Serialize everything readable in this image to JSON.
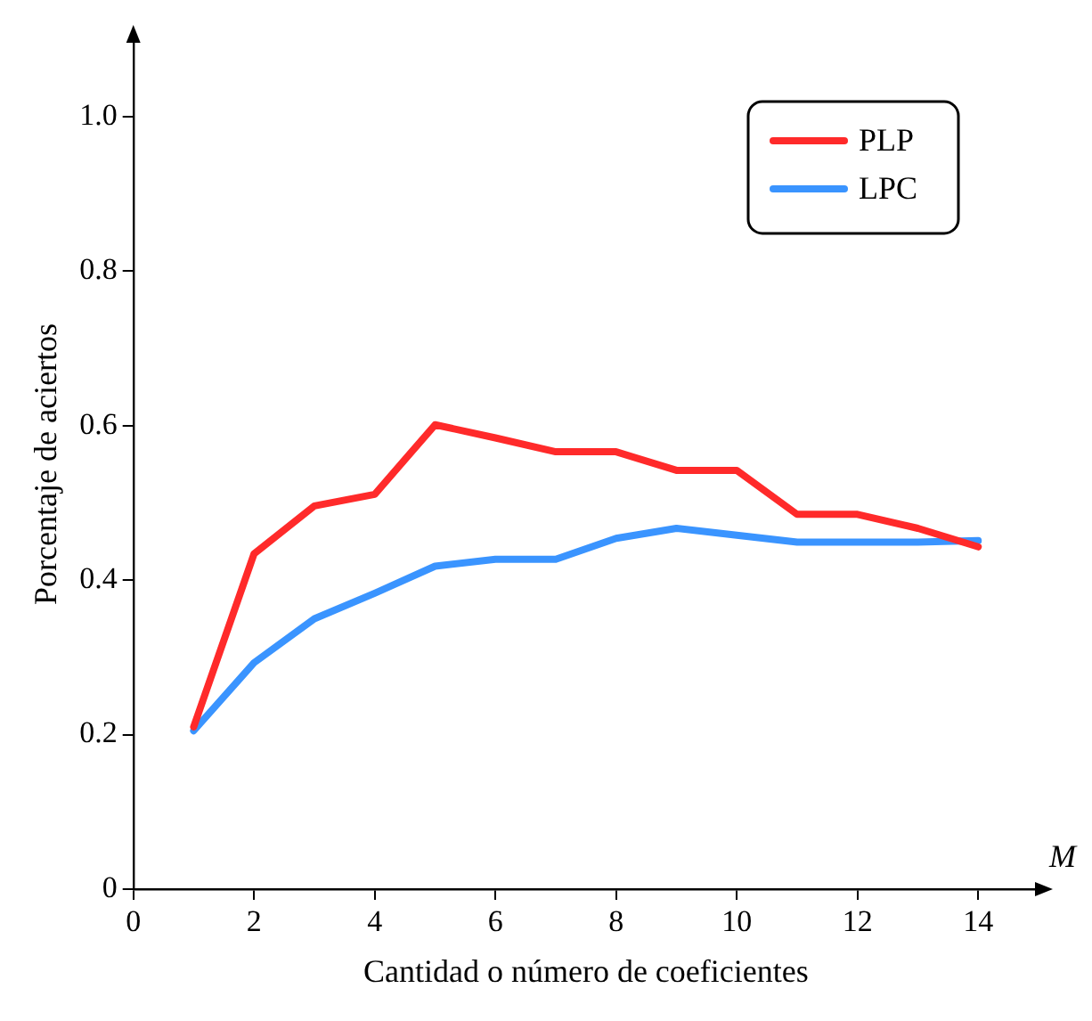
{
  "chart_data": {
    "type": "line",
    "xlabel": "Cantidad o número de coeficientes",
    "ylabel": "Porcentaje de aciertos",
    "annotations": [
      "M"
    ],
    "x": [
      1,
      2,
      3,
      4,
      5,
      6,
      7,
      8,
      9,
      10,
      11,
      12,
      13,
      14
    ],
    "series": [
      {
        "name": "PLP",
        "color": "#ff2a2a",
        "values": [
          0.21,
          0.434,
          0.496,
          0.511,
          0.601,
          0.584,
          0.566,
          0.566,
          0.542,
          0.542,
          0.485,
          0.485,
          0.467,
          0.443
        ]
      },
      {
        "name": "LPC",
        "color": "#3a94ff",
        "values": [
          0.205,
          0.293,
          0.35,
          0.383,
          0.418,
          0.427,
          0.427,
          0.454,
          0.467,
          0.458,
          0.449,
          0.449,
          0.449,
          0.451
        ]
      }
    ],
    "xlim": [
      0,
      15
    ],
    "xticks": [
      0,
      2,
      4,
      6,
      8,
      10,
      12,
      14
    ],
    "ylim": [
      0,
      1.1
    ],
    "yticks": [
      {
        "value": 0,
        "label": "0"
      },
      {
        "value": 0.2,
        "label": "0.2"
      },
      {
        "value": 0.4,
        "label": "0.4"
      },
      {
        "value": 0.6,
        "label": "0.6"
      },
      {
        "value": 0.8,
        "label": "0.8"
      },
      {
        "value": 1,
        "label": "1.0"
      }
    ],
    "grid": false,
    "legend": "top right",
    "marker": "none",
    "line_style": "solid"
  }
}
